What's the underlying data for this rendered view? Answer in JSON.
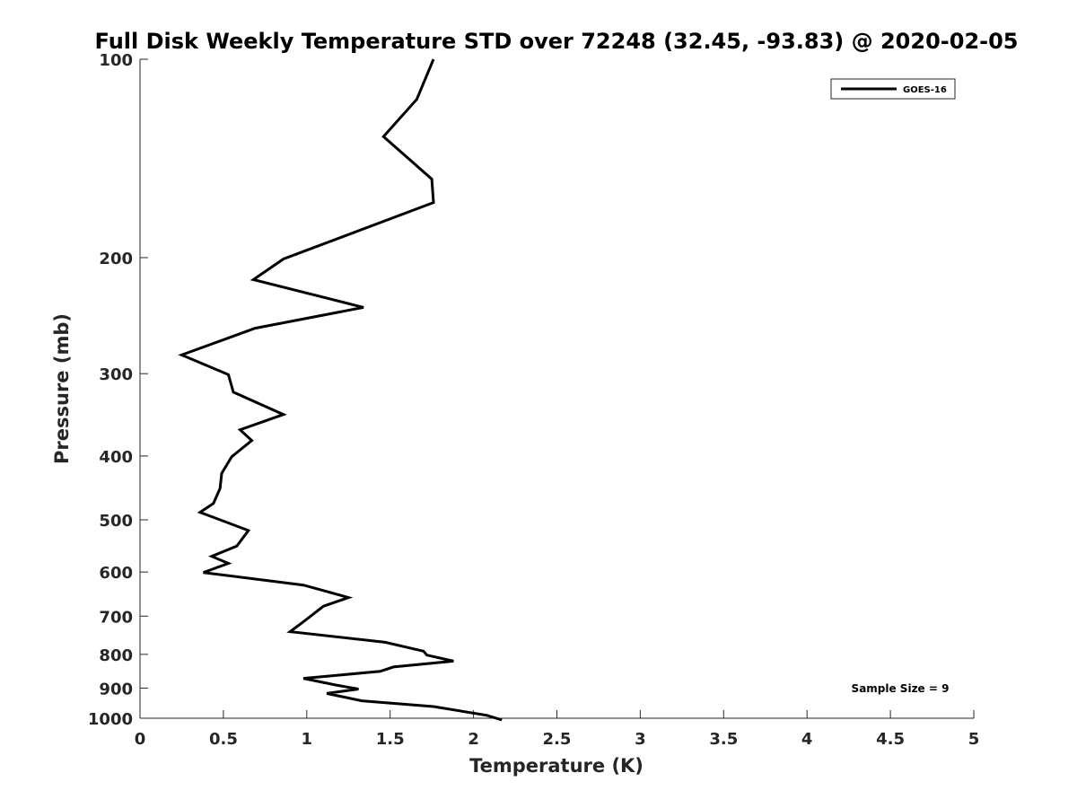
{
  "chart_data": {
    "type": "line",
    "title": "Full Disk Weekly Temperature STD over 72248 (32.45, -93.83) @ 2020-02-05",
    "xlabel": "Temperature (K)",
    "ylabel": "Pressure (mb)",
    "xlim": [
      0,
      5
    ],
    "ylim": [
      100,
      1000
    ],
    "y_scale": "log",
    "y_direction": "reversed",
    "xticks": [
      "0",
      "0.5",
      "1",
      "1.5",
      "2",
      "2.5",
      "3",
      "3.5",
      "4",
      "4.5",
      "5"
    ],
    "yticks": [
      "100",
      "200",
      "300",
      "400",
      "500",
      "600",
      "700",
      "800",
      "900",
      "1000"
    ],
    "grid": false,
    "legend_position": "top-right",
    "annotation": "Sample Size = 9",
    "series": [
      {
        "name": "GOES-16",
        "color": "#000000",
        "x": [
          1.76,
          1.66,
          1.46,
          1.75,
          1.76,
          0.86,
          0.68,
          1.34,
          0.69,
          0.25,
          0.53,
          0.56,
          0.86,
          0.6,
          0.67,
          0.55,
          0.49,
          0.48,
          0.44,
          0.36,
          0.65,
          0.58,
          0.43,
          0.53,
          0.38,
          0.98,
          1.25,
          1.1,
          1.02,
          0.96,
          0.9,
          1.47,
          1.7,
          1.72,
          1.88,
          1.52,
          1.44,
          0.98,
          1.17,
          1.31,
          1.12,
          1.33,
          1.76,
          2.08,
          2.17
        ],
        "y": [
          100,
          115,
          131,
          152,
          165,
          201,
          216,
          238,
          256,
          281,
          301,
          320,
          346,
          365,
          379,
          401,
          425,
          448,
          472,
          487,
          519,
          548,
          568,
          582,
          601,
          628,
          656,
          676,
          701,
          720,
          739,
          767,
          791,
          802,
          819,
          836,
          849,
          870,
          890,
          903,
          917,
          941,
          960,
          990,
          1006
        ]
      }
    ]
  }
}
